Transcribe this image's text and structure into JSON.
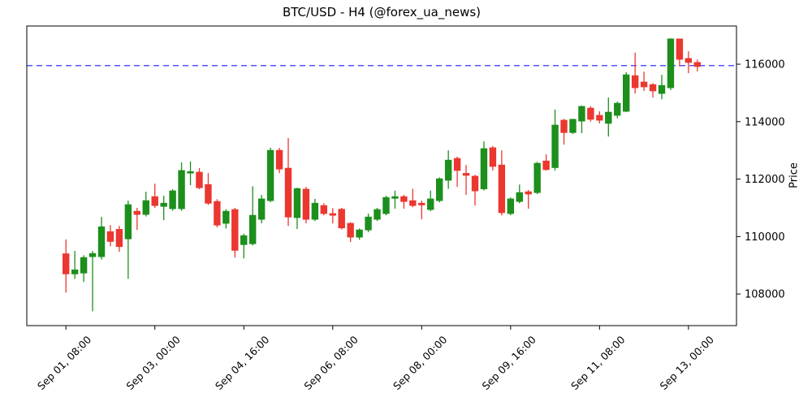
{
  "figure": {
    "title": "BTC/USD - H4 (@forex_ua_news)",
    "background_color": "#ffffff"
  },
  "chart_data": {
    "type": "candlestick",
    "title": "BTC/USD - H4 (@forex_ua_news)",
    "symbol": "BTC/USD",
    "timeframe": "H4",
    "source": "@forex_ua_news",
    "ylabel": "Price",
    "ylabel_position": "right",
    "grid": false,
    "ylim": [
      106900,
      117330
    ],
    "yticks": [
      108000,
      110000,
      112000,
      114000,
      116000
    ],
    "xlim_indices": [
      -4.4,
      75.4
    ],
    "xtick_indices": [
      0,
      10,
      20,
      30,
      40,
      50,
      60,
      70
    ],
    "xtick_labels": [
      "Sep 01, 08:00",
      "Sep 03, 00:00",
      "Sep 04, 16:00",
      "Sep 06, 08:00",
      "Sep 08, 00:00",
      "Sep 09, 16:00",
      "Sep 11, 08:00",
      "Sep 13, 00:00"
    ],
    "hline": {
      "value": 115950,
      "style": "dashed",
      "color": "#1a1aff"
    },
    "colors": {
      "up": "#1c8f1c",
      "down": "#eb3730",
      "axis": "#000000"
    },
    "candles": {
      "times": [
        "Sep 01, 08:00",
        "Sep 01, 12:00",
        "Sep 01, 16:00",
        "Sep 01, 20:00",
        "Sep 02, 00:00",
        "Sep 02, 04:00",
        "Sep 02, 08:00",
        "Sep 02, 12:00",
        "Sep 02, 16:00",
        "Sep 02, 20:00",
        "Sep 03, 00:00",
        "Sep 03, 04:00",
        "Sep 03, 08:00",
        "Sep 03, 12:00",
        "Sep 03, 16:00",
        "Sep 03, 20:00",
        "Sep 04, 00:00",
        "Sep 04, 04:00",
        "Sep 04, 08:00",
        "Sep 04, 12:00",
        "Sep 04, 16:00",
        "Sep 04, 20:00",
        "Sep 05, 00:00",
        "Sep 05, 04:00",
        "Sep 05, 08:00",
        "Sep 05, 12:00",
        "Sep 05, 16:00",
        "Sep 05, 20:00",
        "Sep 06, 00:00",
        "Sep 06, 04:00",
        "Sep 06, 08:00",
        "Sep 06, 12:00",
        "Sep 06, 16:00",
        "Sep 06, 20:00",
        "Sep 07, 00:00",
        "Sep 07, 04:00",
        "Sep 07, 08:00",
        "Sep 07, 12:00",
        "Sep 07, 16:00",
        "Sep 07, 20:00",
        "Sep 08, 00:00",
        "Sep 08, 04:00",
        "Sep 08, 08:00",
        "Sep 08, 12:00",
        "Sep 08, 16:00",
        "Sep 08, 20:00",
        "Sep 09, 00:00",
        "Sep 09, 04:00",
        "Sep 09, 08:00",
        "Sep 09, 12:00",
        "Sep 09, 16:00",
        "Sep 09, 20:00",
        "Sep 10, 00:00",
        "Sep 10, 04:00",
        "Sep 10, 08:00",
        "Sep 10, 12:00",
        "Sep 10, 16:00",
        "Sep 10, 20:00",
        "Sep 11, 00:00",
        "Sep 11, 04:00",
        "Sep 11, 08:00",
        "Sep 11, 12:00",
        "Sep 11, 16:00",
        "Sep 11, 20:00",
        "Sep 12, 00:00",
        "Sep 12, 04:00",
        "Sep 12, 08:00",
        "Sep 12, 12:00",
        "Sep 12, 16:00",
        "Sep 12, 20:00",
        "Sep 13, 00:00",
        "Sep 13, 04:00"
      ],
      "open": [
        109400,
        108700,
        108730,
        109300,
        109300,
        110170,
        110250,
        109920,
        110880,
        110770,
        111390,
        111050,
        110970,
        110970,
        112210,
        112240,
        111810,
        111220,
        110460,
        110940,
        109720,
        109750,
        110600,
        111250,
        113000,
        112380,
        110660,
        111650,
        110600,
        111080,
        110800,
        110950,
        110460,
        109980,
        110230,
        110600,
        110800,
        111330,
        111390,
        111250,
        111160,
        110940,
        111250,
        111960,
        112720,
        112200,
        112100,
        111660,
        113090,
        112490,
        110800,
        111220,
        111560,
        111530,
        112630,
        112400,
        114050,
        113620,
        114020,
        114470,
        114220,
        113940,
        114220,
        114360,
        115600,
        115380,
        115290,
        114980,
        115180,
        116880,
        116200,
        116060
      ],
      "high": [
        109900,
        109500,
        109350,
        109500,
        110680,
        110400,
        110370,
        111250,
        111000,
        111560,
        111840,
        111420,
        111650,
        112580,
        112610,
        112380,
        112210,
        111300,
        110950,
        111000,
        110100,
        111750,
        111450,
        113090,
        113090,
        113430,
        111700,
        111730,
        111310,
        111160,
        110990,
        111000,
        110500,
        110280,
        110800,
        111000,
        111420,
        111600,
        111450,
        111660,
        111250,
        111600,
        112060,
        113000,
        112780,
        112490,
        112150,
        113310,
        113150,
        113000,
        111360,
        111810,
        111620,
        112600,
        112860,
        114420,
        114100,
        114100,
        114560,
        114540,
        114360,
        114840,
        114700,
        115720,
        116400,
        115740,
        115340,
        115630,
        116900,
        116880,
        116450,
        116160
      ],
      "low": [
        108050,
        108530,
        108420,
        107400,
        109200,
        109660,
        109470,
        108530,
        110230,
        110700,
        111000,
        110570,
        110900,
        110900,
        111790,
        111650,
        111100,
        110320,
        110280,
        109270,
        109240,
        109690,
        110460,
        111200,
        112210,
        110370,
        110260,
        110460,
        110540,
        110740,
        110460,
        110250,
        109810,
        109890,
        110150,
        110540,
        110740,
        110970,
        110970,
        111020,
        110600,
        110880,
        111190,
        111660,
        111730,
        111450,
        111080,
        111600,
        112300,
        110740,
        110740,
        111160,
        110970,
        111480,
        112300,
        112300,
        113200,
        113570,
        113600,
        114000,
        113940,
        113480,
        114120,
        114330,
        114980,
        115070,
        114840,
        114780,
        115100,
        115920,
        115690,
        115750
      ],
      "close": [
        108700,
        108840,
        109270,
        109410,
        110340,
        109830,
        109650,
        111110,
        110770,
        111250,
        111080,
        111160,
        111590,
        112300,
        112260,
        111700,
        111160,
        110400,
        110880,
        109520,
        110030,
        110740,
        111310,
        113000,
        112350,
        110680,
        111670,
        110600,
        111160,
        110800,
        110740,
        110300,
        109980,
        110230,
        110680,
        110940,
        111360,
        111390,
        111220,
        111080,
        111100,
        111310,
        112010,
        112660,
        112300,
        112130,
        111590,
        113060,
        112440,
        110830,
        111310,
        111530,
        111480,
        112550,
        112330,
        113880,
        113620,
        114080,
        114530,
        114080,
        114050,
        114330,
        114640,
        115630,
        115180,
        115210,
        115070,
        115260,
        116880,
        116170,
        116060,
        115920
      ]
    }
  }
}
